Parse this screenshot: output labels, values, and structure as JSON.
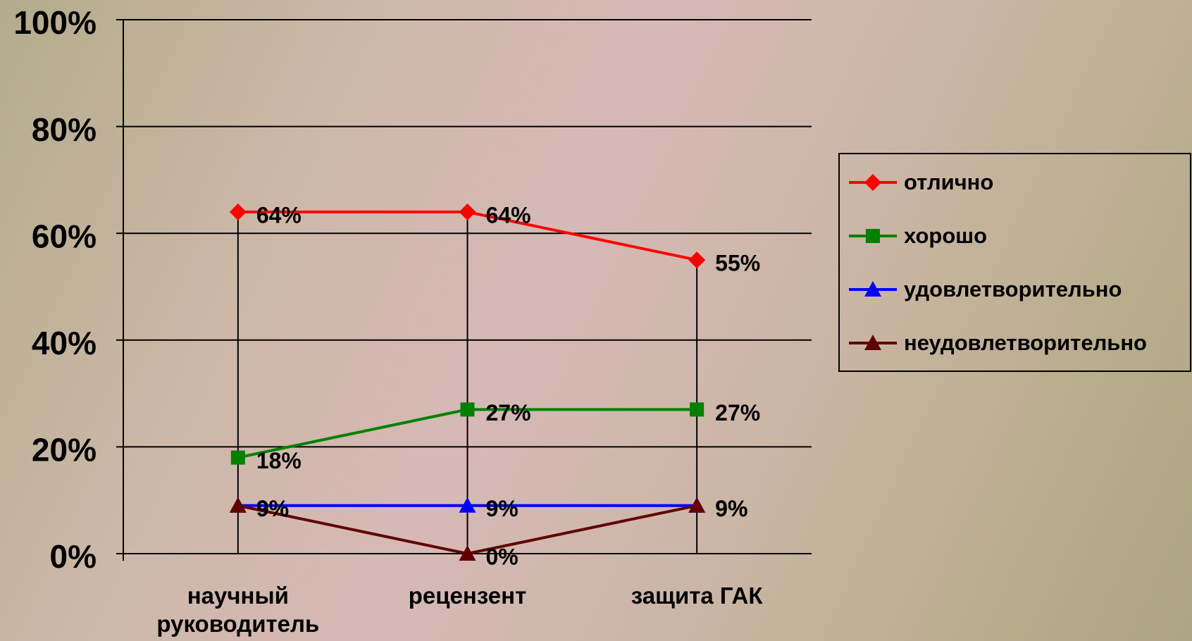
{
  "chart_data": {
    "type": "line",
    "categories": [
      "научный руководитель",
      "рецензент",
      "защита ГАК"
    ],
    "series": [
      {
        "name": "отлично",
        "color": "#ff0000",
        "marker": "diamond",
        "values": [
          64,
          64,
          55
        ],
        "value_labels": [
          "64%",
          "64%",
          "55%"
        ]
      },
      {
        "name": "хорошо",
        "color": "#008000",
        "marker": "square",
        "values": [
          18,
          27,
          27
        ],
        "value_labels": [
          "18%",
          "27%",
          "27%"
        ]
      },
      {
        "name": "удовлетворительно",
        "color": "#0000ff",
        "marker": "triangle",
        "values": [
          9,
          9,
          9
        ],
        "value_labels": [
          "9%",
          "9%",
          "9%"
        ]
      },
      {
        "name": "неудовлетворительно",
        "color": "#600000",
        "marker": "triangle",
        "values": [
          9,
          0,
          9
        ],
        "value_labels": [
          "9%",
          "0%",
          "9%"
        ]
      }
    ],
    "ylim": [
      0,
      100
    ],
    "yticks": [
      {
        "value": 0,
        "label": "0%"
      },
      {
        "value": 20,
        "label": "20%"
      },
      {
        "value": 40,
        "label": "40%"
      },
      {
        "value": 60,
        "label": "60%"
      },
      {
        "value": 80,
        "label": "80%"
      },
      {
        "value": 100,
        "label": "100%"
      }
    ],
    "grid": true,
    "legend": "right"
  }
}
